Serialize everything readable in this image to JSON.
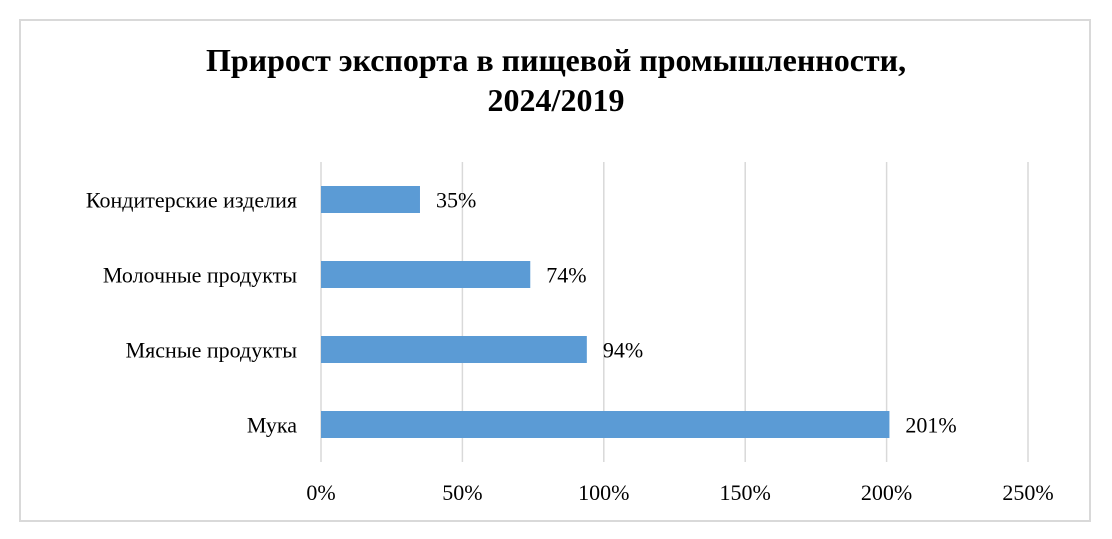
{
  "chart_data": {
    "type": "bar",
    "orientation": "horizontal",
    "title_lines": [
      "Прирост экспорта в пищевой промышленности,",
      "2024/2019"
    ],
    "categories": [
      "Кондитерские изделия",
      "Молочные продукты",
      "Мясные продукты",
      "Мука"
    ],
    "values": [
      35,
      74,
      94,
      201
    ],
    "data_labels": [
      "35%",
      "74%",
      "94%",
      "201%"
    ],
    "xlim": [
      0,
      250
    ],
    "x_ticks": [
      0,
      50,
      100,
      150,
      200,
      250
    ],
    "x_tick_labels": [
      "0%",
      "50%",
      "100%",
      "150%",
      "200%",
      "250%"
    ],
    "grid": "vertical",
    "legend": "none",
    "bar_color": "#5b9bd5",
    "grid_color": "#d9d9d9"
  }
}
